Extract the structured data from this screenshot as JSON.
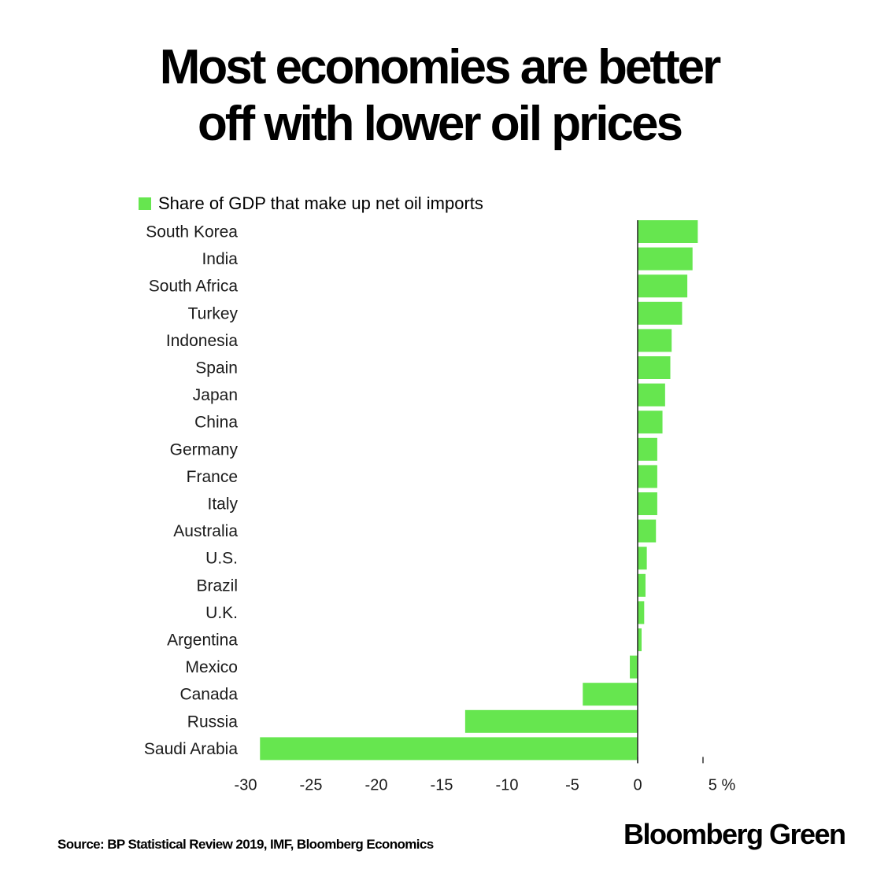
{
  "title_lines": [
    "Most economies are better",
    "off with lower oil prices"
  ],
  "legend": {
    "label": "Share of GDP that make up net oil imports",
    "color": "#66e64f"
  },
  "source": "Source: BP Statistical Review 2019, IMF, Bloomberg Economics",
  "brand": "Bloomberg Green",
  "chart_data": {
    "type": "bar",
    "orientation": "horizontal",
    "categories": [
      "South Korea",
      "India",
      "South Africa",
      "Turkey",
      "Indonesia",
      "Spain",
      "Japan",
      "China",
      "Germany",
      "France",
      "Italy",
      "Australia",
      "U.S.",
      "Brazil",
      "U.K.",
      "Argentina",
      "Mexico",
      "Canada",
      "Russia",
      "Saudi Arabia"
    ],
    "series": [
      {
        "name": "Share of GDP that make up net oil imports",
        "values": [
          4.6,
          4.2,
          3.8,
          3.4,
          2.6,
          2.5,
          2.1,
          1.9,
          1.5,
          1.5,
          1.5,
          1.4,
          0.7,
          0.6,
          0.5,
          0.3,
          -0.6,
          -4.2,
          -13.2,
          -28.9
        ]
      }
    ],
    "xlim": [
      -30,
      5
    ],
    "xticks": [
      -30,
      -25,
      -20,
      -15,
      -10,
      -5,
      0,
      5
    ],
    "xtick_labels": [
      "-30",
      "-25",
      "-20",
      "-15",
      "-10",
      "-5",
      "0",
      "5 %"
    ],
    "bar_color": "#66e64f",
    "legend_position": "top-left",
    "grid": false
  }
}
